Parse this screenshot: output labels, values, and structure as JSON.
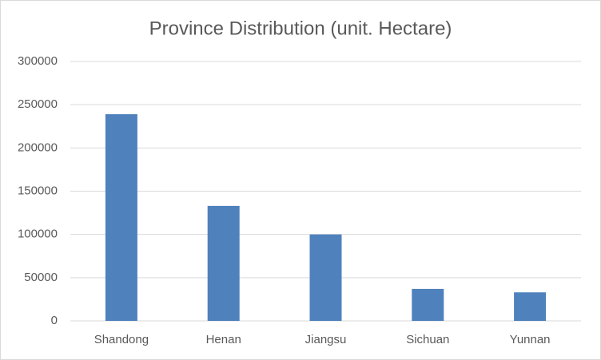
{
  "chart_data": {
    "type": "bar",
    "title": "Province Distribution (unit. Hectare)",
    "categories": [
      "Shandong",
      "Henan",
      "Jiangsu",
      "Sichuan",
      "Yunnan"
    ],
    "values": [
      239000,
      133000,
      100000,
      37000,
      33000
    ],
    "color": "#4f81bd",
    "ylim": [
      0,
      300000
    ],
    "yticks": [
      0,
      50000,
      100000,
      150000,
      200000,
      250000,
      300000
    ],
    "grid": true
  }
}
